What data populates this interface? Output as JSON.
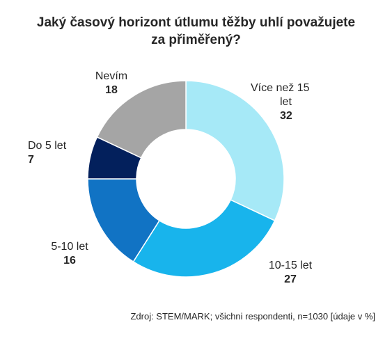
{
  "chart_data": {
    "type": "pie",
    "donut": true,
    "title": "Jaký časový horizont útlumu těžby uhlí považujete za přiměřený?",
    "title_lines": [
      "Jaký časový horizont útlumu těžby uhlí považujete",
      "za přiměřený?"
    ],
    "slices": [
      {
        "label": "Více než 15 let",
        "label_lines": [
          "Více než 15",
          "let"
        ],
        "value": 32,
        "color": "#a6e9f7"
      },
      {
        "label": "10-15 let",
        "value": 27,
        "color": "#18b4ec"
      },
      {
        "label": "5-10 let",
        "value": 16,
        "color": "#1173c4"
      },
      {
        "label": "Do 5 let",
        "value": 7,
        "color": "#03205c"
      },
      {
        "label": "Nevím",
        "value": 18,
        "color": "#a5a5a5"
      }
    ],
    "source": "Zdroj: STEM/MARK; všichni respondenti, n=1030 [údaje v %]"
  }
}
